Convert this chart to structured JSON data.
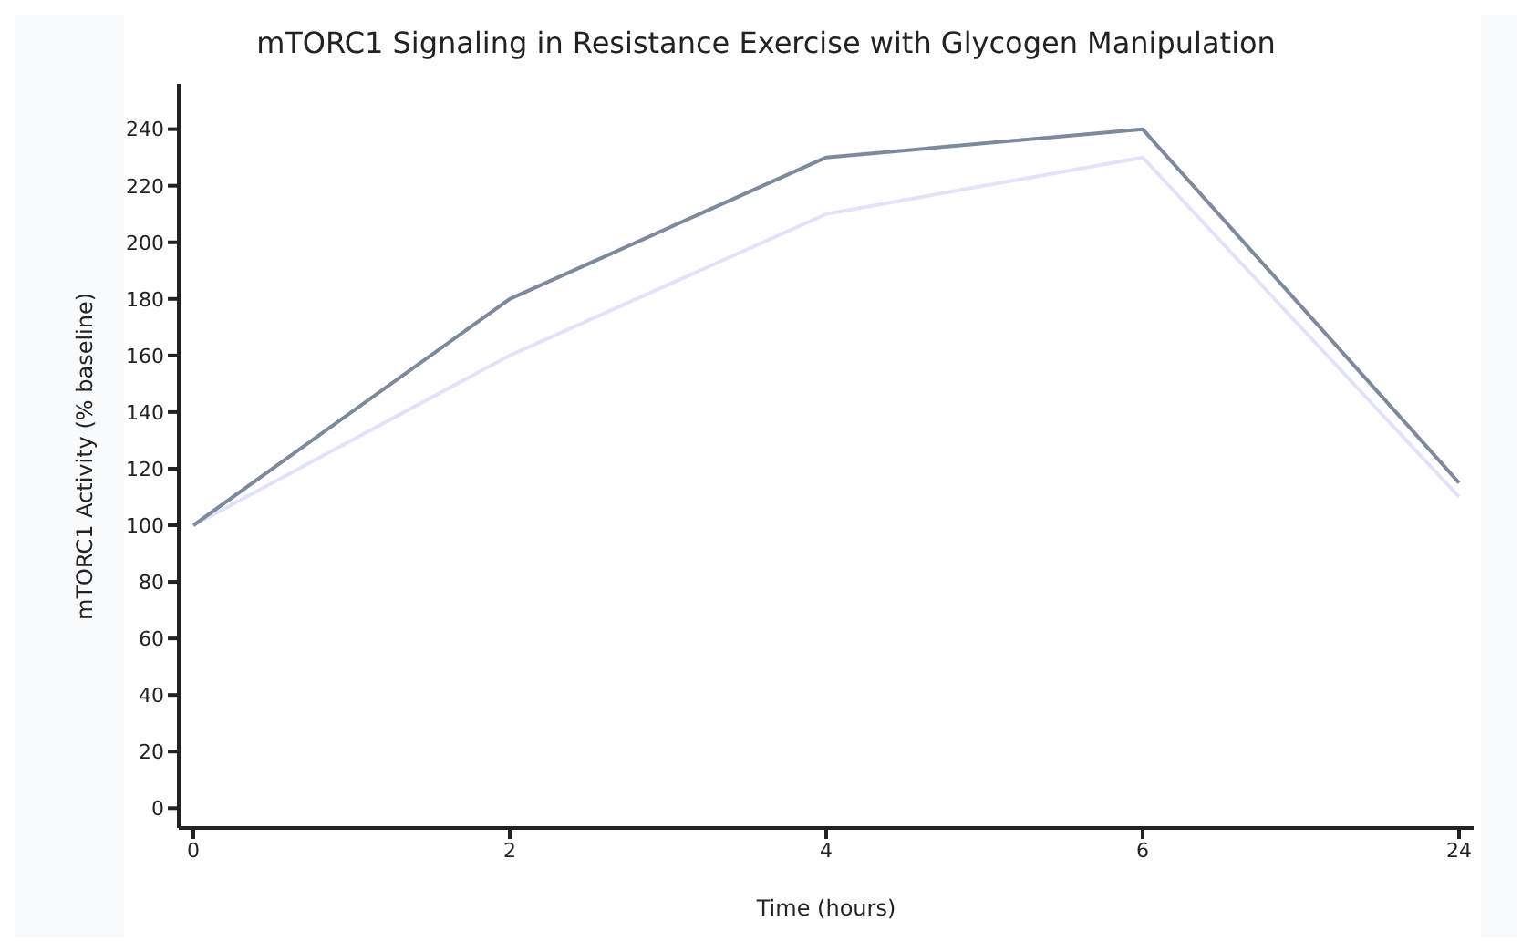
{
  "chart_data": {
    "type": "line",
    "title": "mTORC1 Signaling in Resistance Exercise with Glycogen Manipulation",
    "xlabel": "Time (hours)",
    "ylabel": "mTORC1 Activity (% baseline)",
    "categories": [
      "0",
      "2",
      "4",
      "6",
      "24"
    ],
    "series": [
      {
        "color": "#7d8a9b",
        "values": [
          100,
          180,
          230,
          240,
          115
        ]
      },
      {
        "color": "#e2e2fa",
        "values": [
          100,
          160,
          210,
          230,
          110
        ]
      }
    ],
    "ylim": [
      -7,
      256
    ],
    "yticks": [
      0,
      20,
      40,
      60,
      80,
      100,
      120,
      140,
      160,
      180,
      200,
      220,
      240
    ],
    "grid": false,
    "legend": false,
    "marker": "none",
    "line_style": "solid"
  }
}
